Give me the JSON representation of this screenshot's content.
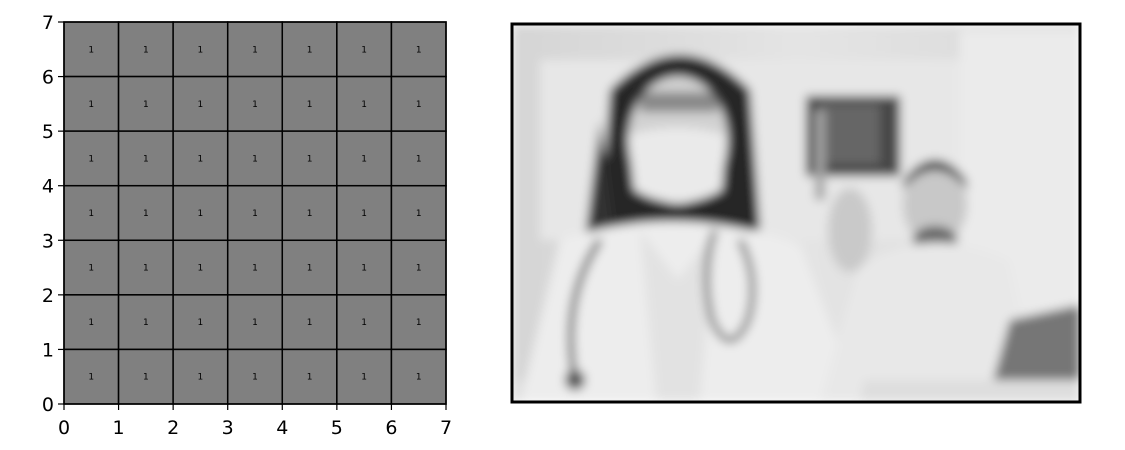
{
  "chart_data": [
    {
      "type": "heatmap",
      "title": "",
      "xlabel": "",
      "ylabel": "",
      "xlim": [
        0,
        7
      ],
      "ylim": [
        0,
        7
      ],
      "x_ticks": [
        "0",
        "1",
        "2",
        "3",
        "4",
        "5",
        "6",
        "7"
      ],
      "y_ticks": [
        "0",
        "1",
        "2",
        "3",
        "4",
        "5",
        "6",
        "7"
      ],
      "grid": true,
      "cell_color": "#808080",
      "grid_color": "#000000",
      "values": [
        [
          1,
          1,
          1,
          1,
          1,
          1,
          1
        ],
        [
          1,
          1,
          1,
          1,
          1,
          1,
          1
        ],
        [
          1,
          1,
          1,
          1,
          1,
          1,
          1
        ],
        [
          1,
          1,
          1,
          1,
          1,
          1,
          1
        ],
        [
          1,
          1,
          1,
          1,
          1,
          1,
          1
        ],
        [
          1,
          1,
          1,
          1,
          1,
          1,
          1
        ],
        [
          1,
          1,
          1,
          1,
          1,
          1,
          1
        ]
      ]
    }
  ],
  "photo": {
    "subject": "doctor-with-syringe-photo",
    "tone": "grayscale-blurred"
  }
}
